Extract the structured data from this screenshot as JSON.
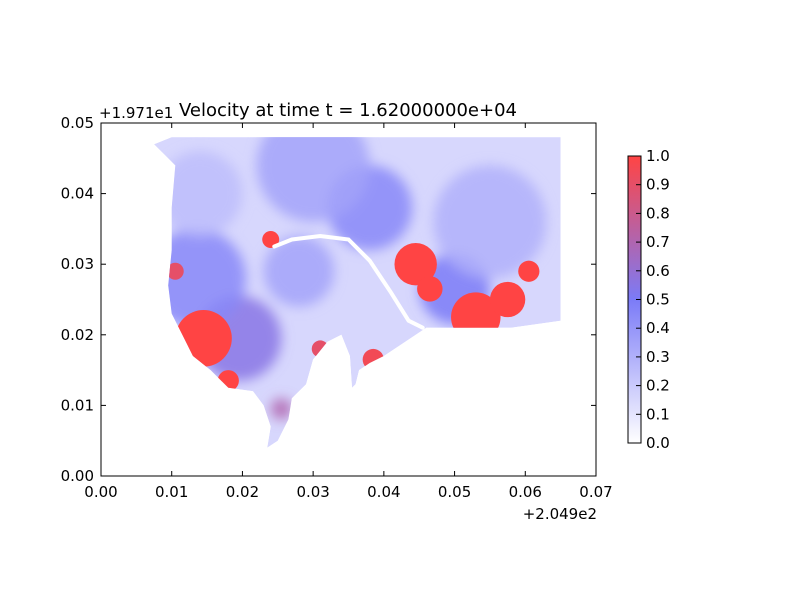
{
  "chart_data": {
    "type": "heatmap",
    "title": "Velocity at time t = 1.62000000e+04",
    "xlabel": "",
    "ylabel": "",
    "xlim": [
      0.0,
      0.07
    ],
    "ylim": [
      0.0,
      0.05
    ],
    "x_ticks": [
      "0.00",
      "0.01",
      "0.02",
      "0.03",
      "0.04",
      "0.05",
      "0.06",
      "0.07"
    ],
    "y_ticks": [
      "0.00",
      "0.01",
      "0.02",
      "0.03",
      "0.04",
      "0.05"
    ],
    "x_offset_label": "+2.049e2",
    "y_offset_label": "+1.971e1",
    "colorbar": {
      "range": [
        0.0,
        1.0
      ],
      "ticks": [
        "0.0",
        "0.1",
        "0.2",
        "0.3",
        "0.4",
        "0.5",
        "0.6",
        "0.7",
        "0.8",
        "0.9",
        "1.0"
      ],
      "colormap": [
        "#ffffff",
        "#7b7bf7",
        "#ff4444"
      ]
    },
    "field": {
      "description_values": "velocity magnitude (approximate), normalized 0-1",
      "domain_polygon": [
        [
          0.0075,
          0.047
        ],
        [
          0.01,
          0.048
        ],
        [
          0.065,
          0.048
        ],
        [
          0.065,
          0.022
        ],
        [
          0.058,
          0.021
        ],
        [
          0.05,
          0.021
        ],
        [
          0.046,
          0.021
        ],
        [
          0.043,
          0.019
        ],
        [
          0.04,
          0.017
        ],
        [
          0.038,
          0.016
        ],
        [
          0.0365,
          0.015
        ],
        [
          0.036,
          0.013
        ],
        [
          0.0355,
          0.0125
        ],
        [
          0.0352,
          0.017
        ],
        [
          0.034,
          0.02
        ],
        [
          0.032,
          0.019
        ],
        [
          0.03,
          0.0165
        ],
        [
          0.029,
          0.013
        ],
        [
          0.027,
          0.011
        ],
        [
          0.0265,
          0.008
        ],
        [
          0.025,
          0.005
        ],
        [
          0.0235,
          0.004
        ],
        [
          0.024,
          0.007
        ],
        [
          0.023,
          0.01
        ],
        [
          0.0215,
          0.012
        ],
        [
          0.018,
          0.0125
        ],
        [
          0.0155,
          0.015
        ],
        [
          0.013,
          0.017
        ],
        [
          0.0115,
          0.02
        ],
        [
          0.01,
          0.023
        ],
        [
          0.0095,
          0.027
        ],
        [
          0.01,
          0.032
        ],
        [
          0.01,
          0.038
        ],
        [
          0.0105,
          0.044
        ],
        [
          0.0075,
          0.047
        ]
      ],
      "hotspots": [
        {
          "x": 0.0145,
          "y": 0.0195,
          "value": 1.0,
          "r": 0.004
        },
        {
          "x": 0.018,
          "y": 0.0135,
          "value": 1.0,
          "r": 0.0015
        },
        {
          "x": 0.0105,
          "y": 0.029,
          "value": 0.9,
          "r": 0.0012
        },
        {
          "x": 0.024,
          "y": 0.0335,
          "value": 1.0,
          "r": 0.0012
        },
        {
          "x": 0.0445,
          "y": 0.03,
          "value": 1.0,
          "r": 0.003
        },
        {
          "x": 0.0465,
          "y": 0.0265,
          "value": 1.0,
          "r": 0.0018
        },
        {
          "x": 0.053,
          "y": 0.0225,
          "value": 1.0,
          "r": 0.0035
        },
        {
          "x": 0.0575,
          "y": 0.025,
          "value": 1.0,
          "r": 0.0025
        },
        {
          "x": 0.0605,
          "y": 0.029,
          "value": 1.0,
          "r": 0.0015
        },
        {
          "x": 0.0385,
          "y": 0.0165,
          "value": 0.95,
          "r": 0.0015
        },
        {
          "x": 0.031,
          "y": 0.018,
          "value": 0.9,
          "r": 0.0012
        },
        {
          "x": 0.0255,
          "y": 0.0095,
          "value": 0.7,
          "r": 0.0015
        },
        {
          "x": 0.0195,
          "y": 0.0195,
          "value": 0.55,
          "r": 0.006
        },
        {
          "x": 0.0135,
          "y": 0.028,
          "value": 0.45,
          "r": 0.007
        },
        {
          "x": 0.038,
          "y": 0.038,
          "value": 0.45,
          "r": 0.006
        },
        {
          "x": 0.03,
          "y": 0.044,
          "value": 0.35,
          "r": 0.008
        },
        {
          "x": 0.05,
          "y": 0.0265,
          "value": 0.5,
          "r": 0.005
        },
        {
          "x": 0.055,
          "y": 0.036,
          "value": 0.3,
          "r": 0.008
        },
        {
          "x": 0.028,
          "y": 0.029,
          "value": 0.35,
          "r": 0.005
        },
        {
          "x": 0.014,
          "y": 0.04,
          "value": 0.25,
          "r": 0.006
        }
      ],
      "channel_polyline": [
        [
          0.0245,
          0.0325
        ],
        [
          0.027,
          0.0335
        ],
        [
          0.031,
          0.034
        ],
        [
          0.035,
          0.0335
        ],
        [
          0.038,
          0.0305
        ],
        [
          0.041,
          0.026
        ],
        [
          0.0435,
          0.022
        ],
        [
          0.0455,
          0.021
        ]
      ]
    }
  }
}
